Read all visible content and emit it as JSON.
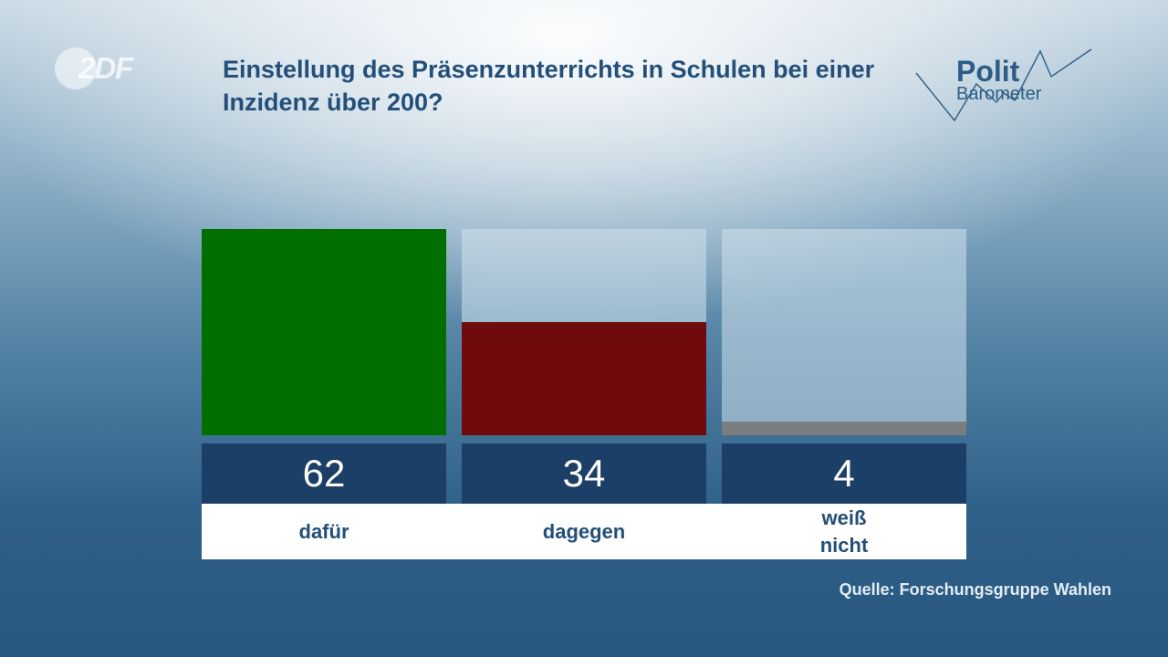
{
  "logo": {
    "brand": "ZDF",
    "text": "2DF"
  },
  "title": "Einstellung des Präsenzunterrichts in Schulen bei einer Inzidenz über 200?",
  "politbarometer": {
    "line1": "Polit",
    "line2": "Barometer"
  },
  "chart_data": {
    "type": "bar",
    "categories": [
      "dafür",
      "dagegen",
      "weiß\nnicht"
    ],
    "values": [
      62,
      34,
      4
    ],
    "value_labels": [
      "62",
      "34",
      "4"
    ],
    "colors": [
      "#006f00",
      "#6f0b0d",
      "#7b7d80"
    ],
    "ylim": [
      0,
      62
    ],
    "grid": false,
    "legend": "none"
  },
  "source": "Quelle: Forschungsgruppe Wahlen"
}
